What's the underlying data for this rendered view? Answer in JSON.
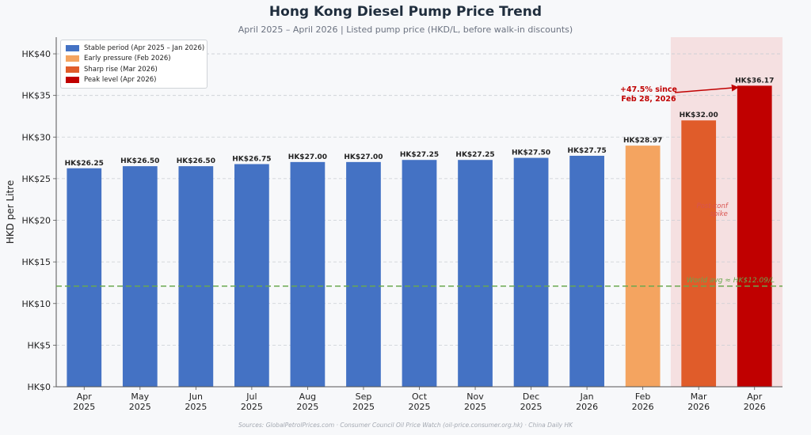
{
  "title": "Hong Kong Diesel Pump Price Trend",
  "subtitle": "April 2025 – April 2026  |  Listed pump price (HKD/L, before walk-in discounts)",
  "source": "Sources: GlobalPetrolPrices.com · Consumer Council Oil Price Watch (oil-price.consumer.org.hk) · China Daily HK",
  "legend": [
    {
      "label": "Stable period (Apr 2025 – Jan 2026)",
      "color": "#4472c4"
    },
    {
      "label": "Early pressure (Feb 2026)",
      "color": "#f4a460"
    },
    {
      "label": "Sharp rise (Mar 2026)",
      "color": "#e05c2a"
    },
    {
      "label": "Peak level (Apr 2026)",
      "color": "#c00000"
    }
  ],
  "chart_data": {
    "type": "bar",
    "title": "Hong Kong Diesel Pump Price Trend",
    "ylabel": "HKD per Litre",
    "ylim": [
      0,
      42
    ],
    "yticks": [
      {
        "value": 0,
        "label": "HK$0"
      },
      {
        "value": 5,
        "label": "HK$5"
      },
      {
        "value": 10,
        "label": "HK$10"
      },
      {
        "value": 15,
        "label": "HK$15"
      },
      {
        "value": 20,
        "label": "HK$20"
      },
      {
        "value": 25,
        "label": "HK$25"
      },
      {
        "value": 30,
        "label": "HK$30"
      },
      {
        "value": 35,
        "label": "HK$35"
      },
      {
        "value": 40,
        "label": "HK$40"
      }
    ],
    "grid": true,
    "legend_position": "top-left",
    "categories": [
      [
        "Apr",
        "2025"
      ],
      [
        "May",
        "2025"
      ],
      [
        "Jun",
        "2025"
      ],
      [
        "Jul",
        "2025"
      ],
      [
        "Aug",
        "2025"
      ],
      [
        "Sep",
        "2025"
      ],
      [
        "Oct",
        "2025"
      ],
      [
        "Nov",
        "2025"
      ],
      [
        "Dec",
        "2025"
      ],
      [
        "Jan",
        "2026"
      ],
      [
        "Feb",
        "2026"
      ],
      [
        "Mar",
        "2026"
      ],
      [
        "Apr",
        "2026"
      ]
    ],
    "values": [
      26.25,
      26.5,
      26.5,
      26.75,
      27.0,
      27.0,
      27.25,
      27.25,
      27.5,
      27.75,
      28.97,
      32.0,
      36.17
    ],
    "value_labels": [
      "HK$26.25",
      "HK$26.50",
      "HK$26.50",
      "HK$26.75",
      "HK$27.00",
      "HK$27.00",
      "HK$27.25",
      "HK$27.25",
      "HK$27.50",
      "HK$27.75",
      "HK$28.97",
      "HK$32.00",
      "HK$36.17"
    ],
    "bar_colors": [
      "#4472c4",
      "#4472c4",
      "#4472c4",
      "#4472c4",
      "#4472c4",
      "#4472c4",
      "#4472c4",
      "#4472c4",
      "#4472c4",
      "#4472c4",
      "#f4a460",
      "#e05c2a",
      "#c00000"
    ],
    "highlight_region": {
      "from_index": 11,
      "to_index": 12,
      "color": "#f2c4c4",
      "label": [
        "Post-conf",
        "spike"
      ]
    },
    "reference_line": {
      "value": 12.09,
      "label": "World avg ≈ HK$12.09/L",
      "color": "#6aa84f"
    },
    "annotation": {
      "text": [
        "+47.5% since",
        "Feb 28, 2026"
      ],
      "color": "#c00000",
      "target_index": 12
    }
  }
}
